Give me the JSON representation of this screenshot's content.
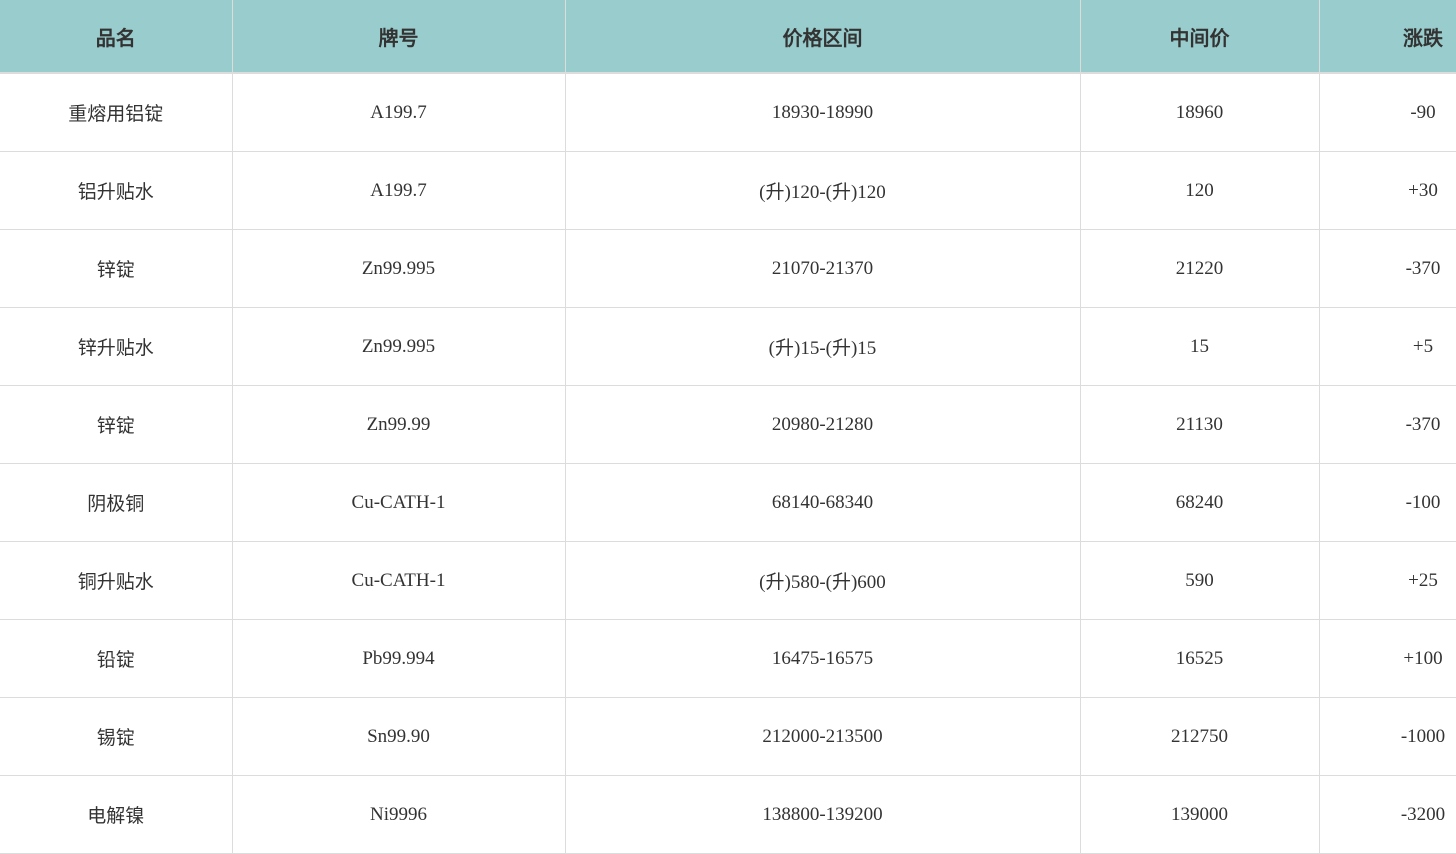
{
  "header_color": "#99cccc",
  "table": {
    "headers": [
      "品名",
      "牌号",
      "价格区间",
      "中间价",
      "涨跌"
    ],
    "rows": [
      [
        "重熔用铝锭",
        "A199.7",
        "18930-18990",
        "18960",
        "-90"
      ],
      [
        "铝升贴水",
        "A199.7",
        "(升)120-(升)120",
        "120",
        "+30"
      ],
      [
        "锌锭",
        "Zn99.995",
        "21070-21370",
        "21220",
        "-370"
      ],
      [
        "锌升贴水",
        "Zn99.995",
        "(升)15-(升)15",
        "15",
        "+5"
      ],
      [
        "锌锭",
        "Zn99.99",
        "20980-21280",
        "21130",
        "-370"
      ],
      [
        "阴极铜",
        "Cu-CATH-1",
        "68140-68340",
        "68240",
        "-100"
      ],
      [
        "铜升贴水",
        "Cu-CATH-1",
        "(升)580-(升)600",
        "590",
        "+25"
      ],
      [
        "铅锭",
        "Pb99.994",
        "16475-16575",
        "16525",
        "+100"
      ],
      [
        "锡锭",
        "Sn99.90",
        "212000-213500",
        "212750",
        "-1000"
      ],
      [
        "电解镍",
        "Ni9996",
        "138800-139200",
        "139000",
        "-3200"
      ]
    ]
  }
}
